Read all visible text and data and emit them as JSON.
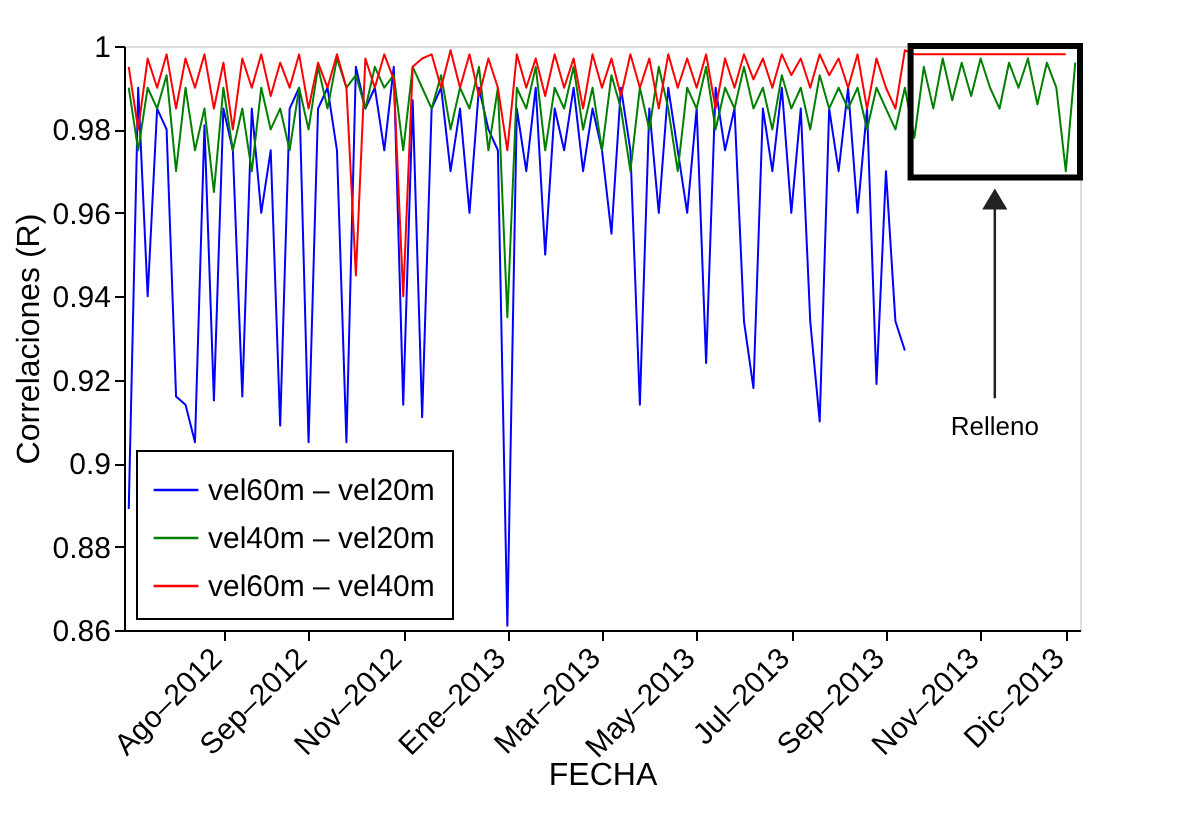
{
  "chart_data": {
    "type": "line",
    "xlabel": "FECHA",
    "ylabel": "Correlaciones (R)",
    "categories": [
      null,
      null,
      null,
      null,
      null,
      null,
      null,
      null,
      null,
      null,
      "Ago–2012",
      null,
      null,
      null,
      null,
      null,
      null,
      null,
      null,
      "Sep–2012",
      null,
      null,
      null,
      null,
      null,
      null,
      null,
      null,
      null,
      "Nov–2012",
      null,
      null,
      null,
      null,
      null,
      null,
      null,
      null,
      null,
      null,
      "Ene–2013",
      null,
      null,
      null,
      null,
      null,
      null,
      null,
      null,
      null,
      "Mar–2013",
      null,
      null,
      null,
      null,
      null,
      null,
      null,
      null,
      null,
      "May–2013",
      null,
      null,
      null,
      null,
      null,
      null,
      null,
      null,
      null,
      "Jul–2013",
      null,
      null,
      null,
      null,
      null,
      null,
      null,
      null,
      null,
      "Sep–2013",
      null,
      null,
      null,
      null,
      null,
      null,
      null,
      null,
      null,
      "Nov–2013",
      null,
      null,
      null,
      null,
      null,
      null,
      null,
      null,
      "Dic–2013",
      null
    ],
    "ylim": [
      0.86,
      1
    ],
    "yticks": [
      0.86,
      0.88,
      0.9,
      0.92,
      0.94,
      0.96,
      0.98,
      1
    ],
    "grid": false,
    "legend": "bottom left",
    "annotations": [
      "Relleno"
    ],
    "series": [
      {
        "name": "vel60m – vel20m",
        "color": "#0000ff",
        "values": [
          0.889,
          0.99,
          0.94,
          0.985,
          0.98,
          0.916,
          0.914,
          0.905,
          0.981,
          0.915,
          0.985,
          0.975,
          0.916,
          0.985,
          0.96,
          0.975,
          0.909,
          0.985,
          0.99,
          0.905,
          0.985,
          0.99,
          0.975,
          0.905,
          0.995,
          0.985,
          0.99,
          0.975,
          0.995,
          0.914,
          0.987,
          0.911,
          0.985,
          0.99,
          0.97,
          0.985,
          0.96,
          0.99,
          0.98,
          0.975,
          0.861,
          0.985,
          0.97,
          0.99,
          0.95,
          0.985,
          0.975,
          0.99,
          0.97,
          0.985,
          0.975,
          0.955,
          0.99,
          0.975,
          0.914,
          0.985,
          0.96,
          0.99,
          0.975,
          0.96,
          0.985,
          0.924,
          0.99,
          0.975,
          0.985,
          0.934,
          0.918,
          0.985,
          0.97,
          0.99,
          0.96,
          0.985,
          0.934,
          0.91,
          0.985,
          0.97,
          0.99,
          0.96,
          0.985,
          0.919,
          0.97,
          0.934,
          0.927,
          null,
          null,
          null,
          null,
          null,
          null,
          null,
          null,
          null,
          null,
          null,
          null,
          null,
          null,
          null,
          null,
          null,
          null
        ]
      },
      {
        "name": "vel40m – vel20m",
        "color": "#008000",
        "values": [
          0.99,
          0.975,
          0.99,
          0.985,
          0.993,
          0.97,
          0.99,
          0.975,
          0.985,
          0.965,
          0.99,
          0.975,
          0.985,
          0.97,
          0.99,
          0.98,
          0.985,
          0.975,
          0.99,
          0.98,
          0.995,
          0.985,
          0.997,
          0.99,
          0.993,
          0.985,
          0.995,
          0.99,
          0.993,
          0.975,
          0.995,
          0.99,
          0.985,
          0.993,
          0.98,
          0.99,
          0.985,
          0.995,
          0.975,
          0.99,
          0.935,
          0.99,
          0.985,
          0.995,
          0.975,
          0.99,
          0.985,
          0.995,
          0.98,
          0.99,
          0.975,
          0.993,
          0.985,
          0.97,
          0.99,
          0.98,
          0.995,
          0.985,
          0.97,
          0.99,
          0.985,
          0.995,
          0.98,
          0.99,
          0.985,
          0.995,
          0.985,
          0.99,
          0.98,
          0.993,
          0.985,
          0.99,
          0.98,
          0.993,
          0.985,
          0.99,
          0.985,
          0.99,
          0.98,
          0.99,
          0.985,
          0.98,
          0.99,
          0.978,
          0.995,
          0.985,
          0.997,
          0.987,
          0.996,
          0.988,
          0.997,
          0.99,
          0.985,
          0.996,
          0.99,
          0.997,
          0.986,
          0.996,
          0.99,
          0.97,
          0.996
        ]
      },
      {
        "name": "vel60m – vel40m",
        "color": "#ff0000",
        "values": [
          0.995,
          0.98,
          0.997,
          0.99,
          0.998,
          0.985,
          0.997,
          0.99,
          0.998,
          0.985,
          0.996,
          0.98,
          0.997,
          0.99,
          0.998,
          0.988,
          0.996,
          0.99,
          0.998,
          0.985,
          0.996,
          0.99,
          0.998,
          0.99,
          0.945,
          0.997,
          0.99,
          0.998,
          0.992,
          0.94,
          0.995,
          0.997,
          0.998,
          0.99,
          0.999,
          0.99,
          0.998,
          0.988,
          0.997,
          0.99,
          0.975,
          0.998,
          0.99,
          0.997,
          0.988,
          0.998,
          0.99,
          0.997,
          0.985,
          0.998,
          0.99,
          0.997,
          0.988,
          0.998,
          0.99,
          0.997,
          0.985,
          0.998,
          0.99,
          0.997,
          0.99,
          0.998,
          0.985,
          0.997,
          0.99,
          0.998,
          0.992,
          0.997,
          0.99,
          0.998,
          0.993,
          0.997,
          0.99,
          0.998,
          0.993,
          0.997,
          0.99,
          0.998,
          0.985,
          0.997,
          0.99,
          0.985,
          0.999,
          0.998,
          0.998,
          0.998,
          0.998,
          0.998,
          0.998,
          0.998,
          0.998,
          0.998,
          0.998,
          0.998,
          0.998,
          0.998,
          0.998,
          0.998,
          0.998,
          0.998,
          null
        ]
      }
    ]
  }
}
